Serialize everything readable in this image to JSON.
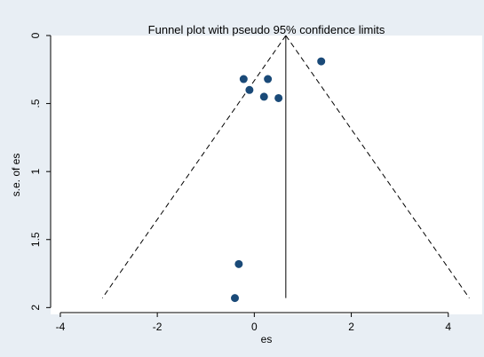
{
  "chart_data": {
    "type": "scatter",
    "title": "Funnel plot with pseudo 95% confidence limits",
    "xlabel": "es",
    "ylabel": "s.e. of es",
    "xlim": [
      -4.2,
      4.7
    ],
    "ylim": [
      0,
      2.05
    ],
    "y_reversed": true,
    "x_ticks": [
      -4,
      -2,
      0,
      2,
      4
    ],
    "x_tick_labels": [
      "-4",
      "-2",
      "0",
      "2",
      "4"
    ],
    "y_ticks": [
      0,
      0.5,
      1,
      1.5,
      2
    ],
    "y_tick_labels": [
      "0",
      ".5",
      "1",
      "1.5",
      "2"
    ],
    "grid": false,
    "legend": "none",
    "pooled_estimate": 0.65,
    "pseudo_ci_se_max": 1.93,
    "points": [
      {
        "x": 1.38,
        "y": 0.19
      },
      {
        "x": -0.22,
        "y": 0.32
      },
      {
        "x": 0.28,
        "y": 0.32
      },
      {
        "x": -0.1,
        "y": 0.4
      },
      {
        "x": 0.2,
        "y": 0.45
      },
      {
        "x": 0.5,
        "y": 0.46
      },
      {
        "x": -0.32,
        "y": 1.68
      },
      {
        "x": -0.4,
        "y": 1.93
      }
    ],
    "colors": {
      "outer_background": "#e8eef4",
      "plot_background": "#ffffff",
      "marker": "#1a4a78",
      "line": "#000000",
      "text": "#000000"
    }
  }
}
